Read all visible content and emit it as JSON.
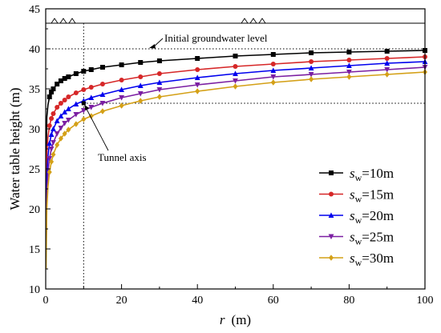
{
  "chart_data": {
    "type": "line",
    "xlabel": "r",
    "xlabel_unit": "(m)",
    "ylabel": "Water table height (m)",
    "xlim": [
      0,
      100
    ],
    "ylim": [
      10,
      45
    ],
    "xticks": [
      0,
      20,
      40,
      60,
      80,
      100
    ],
    "yticks": [
      10,
      15,
      20,
      25,
      30,
      35,
      40,
      45
    ],
    "grid": false,
    "legend_position": "bottom-right",
    "ground_surface_level": 43.2,
    "initial_groundwater_level": 40,
    "tunnel_axis_x": 10,
    "tunnel_axis_y": 33.2,
    "annotations": {
      "groundwater": "Initial groundwater level",
      "tunnel": "Tunnel axis"
    },
    "x": [
      0.1,
      0.3,
      0.6,
      1,
      1.5,
      2,
      3,
      4,
      5,
      6,
      8,
      10,
      12,
      15,
      20,
      25,
      30,
      40,
      50,
      60,
      70,
      80,
      90,
      100
    ],
    "series": [
      {
        "symbol": "s",
        "subscript": "w",
        "value_label": "=10m",
        "color": "#000000",
        "marker": "square",
        "values": [
          26.0,
          31.5,
          33.0,
          34.0,
          34.6,
          35.0,
          35.6,
          36.0,
          36.3,
          36.5,
          36.9,
          37.2,
          37.4,
          37.7,
          38.0,
          38.3,
          38.5,
          38.8,
          39.1,
          39.3,
          39.5,
          39.6,
          39.7,
          39.8
        ]
      },
      {
        "symbol": "s",
        "subscript": "w",
        "value_label": "=15m",
        "color": "#d62728",
        "marker": "circle",
        "values": [
          19.0,
          27.0,
          29.0,
          30.4,
          31.3,
          31.9,
          32.7,
          33.2,
          33.6,
          34.0,
          34.5,
          34.9,
          35.2,
          35.6,
          36.1,
          36.5,
          36.9,
          37.4,
          37.8,
          38.1,
          38.4,
          38.6,
          38.8,
          39.0
        ]
      },
      {
        "symbol": "s",
        "subscript": "w",
        "value_label": "=20m",
        "color": "#0000ee",
        "marker": "triangle-up",
        "values": [
          16.0,
          24.0,
          26.6,
          28.2,
          29.3,
          30.0,
          31.0,
          31.6,
          32.1,
          32.5,
          33.1,
          33.5,
          33.9,
          34.3,
          34.9,
          35.4,
          35.8,
          36.4,
          36.9,
          37.3,
          37.6,
          37.9,
          38.2,
          38.4
        ]
      },
      {
        "symbol": "s",
        "subscript": "w",
        "value_label": "=25m",
        "color": "#7b1fa2",
        "marker": "triangle-down",
        "values": [
          14.0,
          22.0,
          24.6,
          26.3,
          27.5,
          28.3,
          29.4,
          30.1,
          30.7,
          31.1,
          31.8,
          32.3,
          32.7,
          33.2,
          33.9,
          34.4,
          34.9,
          35.5,
          36.0,
          36.5,
          36.8,
          37.1,
          37.4,
          37.7
        ]
      },
      {
        "symbol": "s",
        "subscript": "w",
        "value_label": "=30m",
        "color": "#d4a017",
        "marker": "diamond",
        "values": [
          12.5,
          20.0,
          22.8,
          24.6,
          25.9,
          26.8,
          28.0,
          28.8,
          29.4,
          29.9,
          30.6,
          31.2,
          31.6,
          32.2,
          32.9,
          33.5,
          34.0,
          34.7,
          35.3,
          35.8,
          36.2,
          36.5,
          36.8,
          37.1
        ]
      }
    ]
  }
}
